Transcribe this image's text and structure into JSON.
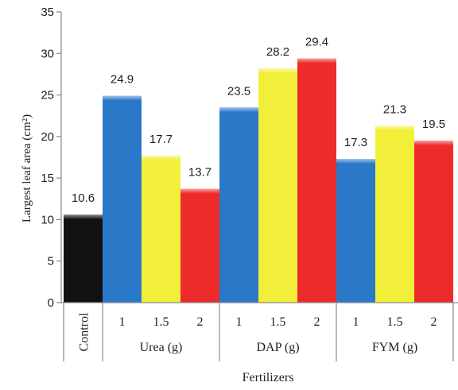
{
  "chart_data": {
    "type": "bar",
    "title": "",
    "xlabel": "Fertilizers",
    "ylabel": "Largest leaf area (cm²)",
    "ylim": [
      0,
      35
    ],
    "yticks": [
      0,
      5,
      10,
      15,
      20,
      25,
      30,
      35
    ],
    "grid": false,
    "legend": "none",
    "bars": [
      {
        "category": "Control",
        "dose": "",
        "value": 10.6,
        "label": "10.6",
        "color": "#111111"
      },
      {
        "category": "Urea (g)",
        "dose": "1",
        "value": 24.9,
        "label": "24.9",
        "color": "#2a78c8"
      },
      {
        "category": "Urea (g)",
        "dose": "1.5",
        "value": 17.7,
        "label": "17.7",
        "color": "#f2ef3a"
      },
      {
        "category": "Urea (g)",
        "dose": "2",
        "value": 13.7,
        "label": "13.7",
        "color": "#ee2b2b"
      },
      {
        "category": "DAP (g)",
        "dose": "1",
        "value": 23.5,
        "label": "23.5",
        "color": "#2a78c8"
      },
      {
        "category": "DAP (g)",
        "dose": "1.5",
        "value": 28.2,
        "label": "28.2",
        "color": "#f2ef3a"
      },
      {
        "category": "DAP (g)",
        "dose": "2",
        "value": 29.4,
        "label": "29.4",
        "color": "#ee2b2b"
      },
      {
        "category": "FYM (g)",
        "dose": "1",
        "value": 17.3,
        "label": "17.3",
        "color": "#2a78c8"
      },
      {
        "category": "FYM (g)",
        "dose": "1.5",
        "value": 21.3,
        "label": "21.3",
        "color": "#f2ef3a"
      },
      {
        "category": "FYM (g)",
        "dose": "2",
        "value": 19.5,
        "label": "19.5",
        "color": "#ee2b2b"
      }
    ],
    "groups": [
      "Control",
      "Urea (g)",
      "DAP (g)",
      "FYM (g)"
    ]
  }
}
